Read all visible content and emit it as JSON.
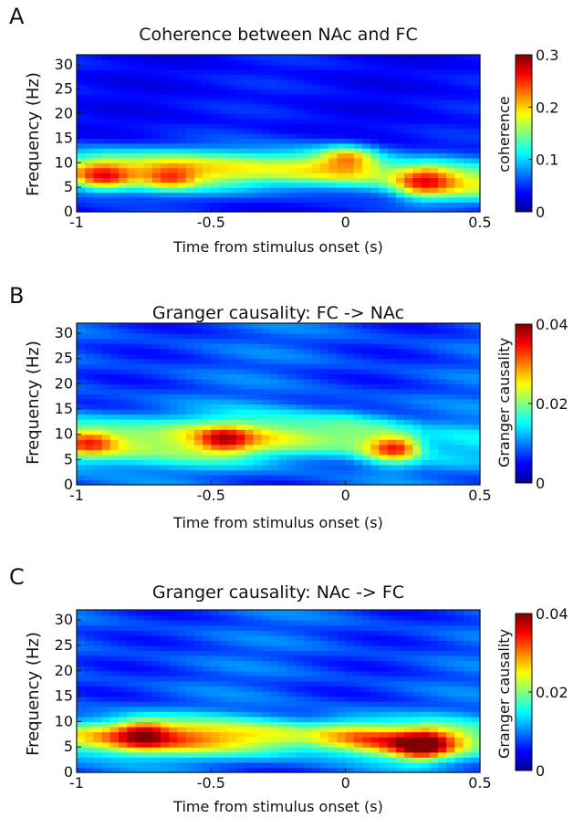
{
  "colormap": {
    "name": "jet",
    "stops": [
      "#00008f",
      "#0000ff",
      "#0080ff",
      "#00ffff",
      "#80ff80",
      "#ffff00",
      "#ff8000",
      "#ff0000",
      "#800000"
    ]
  },
  "chart_data": [
    {
      "type": "heatmap",
      "panel": "A",
      "title": "Coherence between NAc and FC",
      "xlabel": "Time from stimulus onset (s)",
      "ylabel": "Frequency (Hz)",
      "colorbar_label": "coherence",
      "xlim": [
        -1,
        0.5
      ],
      "ylim": [
        0,
        32
      ],
      "clim": [
        0,
        0.3
      ],
      "xticks": [
        -1,
        -0.5,
        0,
        0.5
      ],
      "xtick_labels": [
        "-1",
        "-0.5",
        "0",
        "0.5"
      ],
      "yticks": [
        0,
        5,
        10,
        15,
        20,
        25,
        30
      ],
      "ytick_labels": [
        "0",
        "5",
        "10",
        "15",
        "20",
        "25",
        "30"
      ],
      "cbar_ticks": [
        0,
        0.1,
        0.2,
        0.3
      ],
      "cbar_tick_labels": [
        "0",
        "0.1",
        "0.2",
        "0.3"
      ],
      "band": {
        "center_hz": [
          [
            -1,
            8.5
          ],
          [
            -0.5,
            8.5
          ],
          [
            0,
            9
          ],
          [
            0.1,
            8.5
          ],
          [
            0.25,
            6.5
          ],
          [
            0.5,
            6
          ]
        ],
        "width_hz": 4,
        "strength": [
          [
            -1,
            0.19
          ],
          [
            -0.9,
            0.21
          ],
          [
            -0.6,
            0.2
          ],
          [
            -0.3,
            0.18
          ],
          [
            0,
            0.21
          ],
          [
            0.15,
            0.16
          ],
          [
            0.3,
            0.21
          ],
          [
            0.5,
            0.18
          ]
        ]
      },
      "hotspots": [
        {
          "t": -0.9,
          "f": 7.5,
          "v": 0.27
        },
        {
          "t": -0.65,
          "f": 7.5,
          "v": 0.25
        },
        {
          "t": 0,
          "f": 10.5,
          "v": 0.24
        },
        {
          "t": 0.3,
          "f": 6.5,
          "v": 0.26
        }
      ],
      "background": 0.04
    },
    {
      "type": "heatmap",
      "panel": "B",
      "title": "Granger causality: FC -> NAc",
      "xlabel": "Time from stimulus onset (s)",
      "ylabel": "Frequency (Hz)",
      "colorbar_label": "Granger causality",
      "xlim": [
        -1,
        0.5
      ],
      "ylim": [
        0,
        32
      ],
      "clim": [
        0,
        0.04
      ],
      "xticks": [
        -1,
        -0.5,
        0,
        0.5
      ],
      "xtick_labels": [
        "-1",
        "-0.5",
        "0",
        "0.5"
      ],
      "yticks": [
        0,
        5,
        10,
        15,
        20,
        25,
        30
      ],
      "ytick_labels": [
        "0",
        "5",
        "10",
        "15",
        "20",
        "25",
        "30"
      ],
      "cbar_ticks": [
        0,
        0.02,
        0.04
      ],
      "cbar_tick_labels": [
        "0",
        "0.02",
        "0.04"
      ],
      "band": {
        "center_hz": [
          [
            -1,
            8.5
          ],
          [
            -0.5,
            9
          ],
          [
            0,
            10
          ],
          [
            0.2,
            8
          ],
          [
            0.5,
            8
          ]
        ],
        "width_hz": 4.5,
        "strength": [
          [
            -1,
            0.026
          ],
          [
            -0.7,
            0.022
          ],
          [
            -0.4,
            0.027
          ],
          [
            -0.1,
            0.023
          ],
          [
            0.15,
            0.022
          ],
          [
            0.3,
            0.012
          ],
          [
            0.5,
            0.014
          ]
        ]
      },
      "hotspots": [
        {
          "t": -0.95,
          "f": 8.5,
          "v": 0.035
        },
        {
          "t": -0.45,
          "f": 9,
          "v": 0.037
        },
        {
          "t": 0.18,
          "f": 7.5,
          "v": 0.034
        }
      ],
      "background": 0.008
    },
    {
      "type": "heatmap",
      "panel": "C",
      "title": "Granger causality: NAc -> FC",
      "xlabel": "Time from stimulus onset (s)",
      "ylabel": "Frequency (Hz)",
      "colorbar_label": "Granger causality",
      "xlim": [
        -1,
        0.5
      ],
      "ylim": [
        0,
        32
      ],
      "clim": [
        0,
        0.04
      ],
      "xticks": [
        -1,
        -0.5,
        0,
        0.5
      ],
      "xtick_labels": [
        "-1",
        "-0.5",
        "0",
        "0.5"
      ],
      "yticks": [
        0,
        5,
        10,
        15,
        20,
        25,
        30
      ],
      "ytick_labels": [
        "0",
        "5",
        "10",
        "15",
        "20",
        "25",
        "30"
      ],
      "cbar_ticks": [
        0,
        0.02,
        0.04
      ],
      "cbar_tick_labels": [
        "0",
        "0.02",
        "0.04"
      ],
      "band": {
        "center_hz": [
          [
            -1,
            7
          ],
          [
            -0.5,
            7
          ],
          [
            0,
            7
          ],
          [
            0.25,
            6
          ],
          [
            0.5,
            6.5
          ]
        ],
        "width_hz": 3.5,
        "strength": [
          [
            -1,
            0.026
          ],
          [
            -0.8,
            0.033
          ],
          [
            -0.6,
            0.031
          ],
          [
            -0.45,
            0.028
          ],
          [
            -0.15,
            0.024
          ],
          [
            0.05,
            0.032
          ],
          [
            0.3,
            0.036
          ],
          [
            0.5,
            0.02
          ]
        ]
      },
      "hotspots": [
        {
          "t": -0.75,
          "f": 7.5,
          "v": 0.04
        },
        {
          "t": 0.28,
          "f": 5.5,
          "v": 0.042
        }
      ],
      "background": 0.008
    }
  ]
}
